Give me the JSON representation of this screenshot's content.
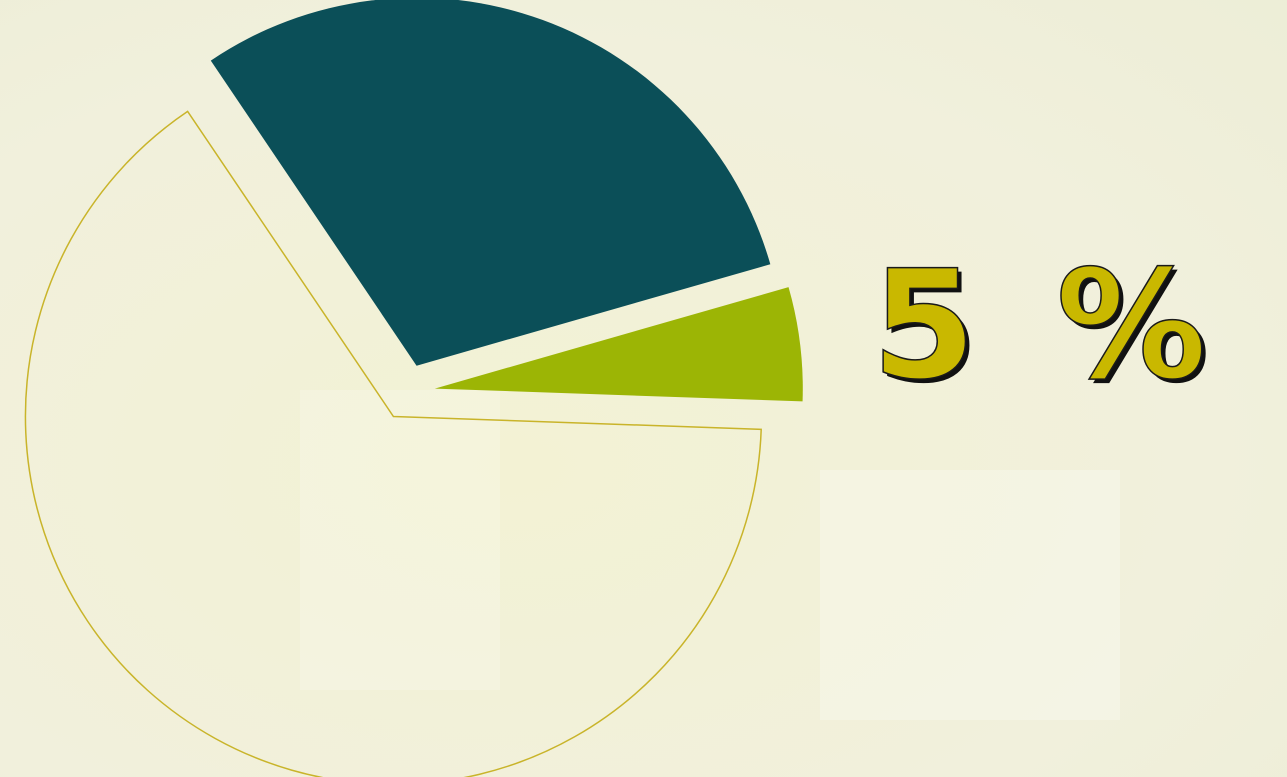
{
  "chart_data": {
    "type": "pie",
    "values": [
      30,
      5,
      65
    ],
    "value_labels": [
      null,
      "5 %",
      null
    ],
    "colors": [
      "#0b4f58",
      "#9cb505",
      "none"
    ],
    "edgecolor": "#c9b42a"
  }
}
